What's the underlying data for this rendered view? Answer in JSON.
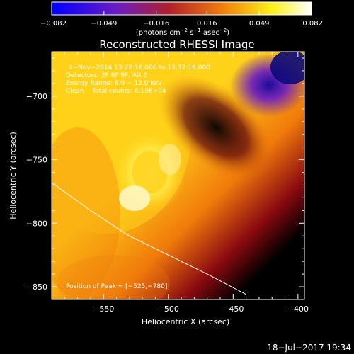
{
  "chart_data": {
    "type": "heatmap",
    "title": "Reconstructed RHESSI Image",
    "xlabel": "Heliocentric X (arcsec)",
    "ylabel": "Heliocentric Y (arcsec)",
    "xlim": [
      -590,
      -395
    ],
    "ylim": [
      -860,
      -665
    ],
    "x_ticks": [
      -550,
      -500,
      -450,
      -400
    ],
    "y_ticks": [
      -700,
      -750,
      -800,
      -850
    ],
    "x_tick_labels": [
      "−550",
      "−500",
      "−450",
      "−400"
    ],
    "y_tick_labels": [
      "−700",
      "−750",
      "−800",
      "−850"
    ],
    "colorbar": {
      "ticks": [
        -0.082,
        -0.049,
        -0.016,
        0.016,
        0.049,
        0.082
      ],
      "tick_labels": [
        "−0.082",
        "−0.049",
        "−0.016",
        "0.016",
        "0.049",
        "0.082"
      ],
      "unit_main": "(photons cm",
      "unit_exp1": "−2",
      "unit_mid": " s",
      "unit_exp2": "−1",
      "unit_mid2": " asec",
      "unit_exp3": "−2",
      "unit_end": ")",
      "range": [
        -0.082,
        0.082
      ]
    },
    "annotations": {
      "line1": "1−Nov−2014 13:22:16.000 to 13:32:16.000",
      "line2": "Detectors: 3F 6F 9F, Att 0",
      "line3": "Energy Range: 6.0 − 12.0 keV",
      "line4": "Clean    Total counts: 6.19E+04",
      "peak": "Position of Peak = [−525,−780]"
    },
    "peak": {
      "x": -525,
      "y": -780
    },
    "limb_curve": [
      {
        "x": -590,
        "y": -768
      },
      {
        "x": -560,
        "y": -790
      },
      {
        "x": -530,
        "y": -810
      },
      {
        "x": -500,
        "y": -825
      },
      {
        "x": -470,
        "y": -840
      },
      {
        "x": -440,
        "y": -856
      }
    ],
    "colors": {
      "background": "#000000",
      "axes": "#ffffff",
      "limb": "#ffffff",
      "colormap": [
        "#0000ff",
        "#6a1cc4",
        "#d6402a",
        "#f07a0a",
        "#fff21a",
        "#ffffff"
      ]
    }
  },
  "footer": {
    "timestamp": "18−Jul−2017 19:34"
  }
}
